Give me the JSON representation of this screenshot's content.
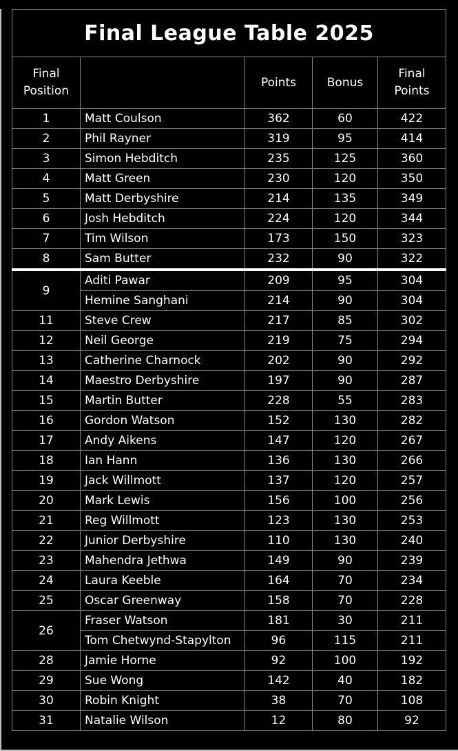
{
  "title": "Final League Table 2025",
  "colors": {
    "background": "#000000",
    "text": "#ffffff",
    "grid_border": "#848484",
    "cutoff_line": "#ffffff",
    "window_edge": "#c0c0c0"
  },
  "table": {
    "headers": {
      "position": "Final Position",
      "name": "",
      "points": "Points",
      "bonus": "Bonus",
      "final_points": "Final Points"
    },
    "cutoff_after_row_index": 7,
    "rows": [
      {
        "position": "1",
        "position_rowspan": 1,
        "name": "Matt Coulson",
        "points": "362",
        "bonus": "60",
        "final_points": "422"
      },
      {
        "position": "2",
        "position_rowspan": 1,
        "name": "Phil Rayner",
        "points": "319",
        "bonus": "95",
        "final_points": "414"
      },
      {
        "position": "3",
        "position_rowspan": 1,
        "name": "Simon Hebditch",
        "points": "235",
        "bonus": "125",
        "final_points": "360"
      },
      {
        "position": "4",
        "position_rowspan": 1,
        "name": "Matt Green",
        "points": "230",
        "bonus": "120",
        "final_points": "350"
      },
      {
        "position": "5",
        "position_rowspan": 1,
        "name": "Matt Derbyshire",
        "points": "214",
        "bonus": "135",
        "final_points": "349"
      },
      {
        "position": "6",
        "position_rowspan": 1,
        "name": "Josh Hebditch",
        "points": "224",
        "bonus": "120",
        "final_points": "344"
      },
      {
        "position": "7",
        "position_rowspan": 1,
        "name": "Tim Wilson",
        "points": "173",
        "bonus": "150",
        "final_points": "323"
      },
      {
        "position": "8",
        "position_rowspan": 1,
        "name": "Sam Butter",
        "points": "232",
        "bonus": "90",
        "final_points": "322"
      },
      {
        "position": "9",
        "position_rowspan": 2,
        "name": "Aditi Pawar",
        "points": "209",
        "bonus": "95",
        "final_points": "304"
      },
      {
        "position": null,
        "position_rowspan": 0,
        "name": "Hemine Sanghani",
        "points": "214",
        "bonus": "90",
        "final_points": "304"
      },
      {
        "position": "11",
        "position_rowspan": 1,
        "name": "Steve Crew",
        "points": "217",
        "bonus": "85",
        "final_points": "302"
      },
      {
        "position": "12",
        "position_rowspan": 1,
        "name": "Neil George",
        "points": "219",
        "bonus": "75",
        "final_points": "294"
      },
      {
        "position": "13",
        "position_rowspan": 1,
        "name": "Catherine Charnock",
        "points": "202",
        "bonus": "90",
        "final_points": "292"
      },
      {
        "position": "14",
        "position_rowspan": 1,
        "name": "Maestro Derbyshire",
        "points": "197",
        "bonus": "90",
        "final_points": "287"
      },
      {
        "position": "15",
        "position_rowspan": 1,
        "name": "Martin Butter",
        "points": "228",
        "bonus": "55",
        "final_points": "283"
      },
      {
        "position": "16",
        "position_rowspan": 1,
        "name": "Gordon Watson",
        "points": "152",
        "bonus": "130",
        "final_points": "282"
      },
      {
        "position": "17",
        "position_rowspan": 1,
        "name": "Andy Aikens",
        "points": "147",
        "bonus": "120",
        "final_points": "267"
      },
      {
        "position": "18",
        "position_rowspan": 1,
        "name": "Ian Hann",
        "points": "136",
        "bonus": "130",
        "final_points": "266"
      },
      {
        "position": "19",
        "position_rowspan": 1,
        "name": "Jack Willmott",
        "points": "137",
        "bonus": "120",
        "final_points": "257"
      },
      {
        "position": "20",
        "position_rowspan": 1,
        "name": "Mark Lewis",
        "points": "156",
        "bonus": "100",
        "final_points": "256"
      },
      {
        "position": "21",
        "position_rowspan": 1,
        "name": "Reg Willmott",
        "points": "123",
        "bonus": "130",
        "final_points": "253"
      },
      {
        "position": "22",
        "position_rowspan": 1,
        "name": "Junior Derbyshire",
        "points": "110",
        "bonus": "130",
        "final_points": "240"
      },
      {
        "position": "23",
        "position_rowspan": 1,
        "name": "Mahendra Jethwa",
        "points": "149",
        "bonus": "90",
        "final_points": "239"
      },
      {
        "position": "24",
        "position_rowspan": 1,
        "name": "Laura Keeble",
        "points": "164",
        "bonus": "70",
        "final_points": "234"
      },
      {
        "position": "25",
        "position_rowspan": 1,
        "name": "Oscar Greenway",
        "points": "158",
        "bonus": "70",
        "final_points": "228"
      },
      {
        "position": "26",
        "position_rowspan": 2,
        "name": "Fraser Watson",
        "points": "181",
        "bonus": "30",
        "final_points": "211"
      },
      {
        "position": null,
        "position_rowspan": 0,
        "name": "Tom Chetwynd-Stapylton",
        "points": "96",
        "bonus": "115",
        "final_points": "211"
      },
      {
        "position": "28",
        "position_rowspan": 1,
        "name": "Jamie Horne",
        "points": "92",
        "bonus": "100",
        "final_points": "192"
      },
      {
        "position": "29",
        "position_rowspan": 1,
        "name": "Sue Wong",
        "points": "142",
        "bonus": "40",
        "final_points": "182"
      },
      {
        "position": "30",
        "position_rowspan": 1,
        "name": "Robin Knight",
        "points": "38",
        "bonus": "70",
        "final_points": "108"
      },
      {
        "position": "31",
        "position_rowspan": 1,
        "name": "Natalie Wilson",
        "points": "12",
        "bonus": "80",
        "final_points": "92"
      }
    ]
  }
}
